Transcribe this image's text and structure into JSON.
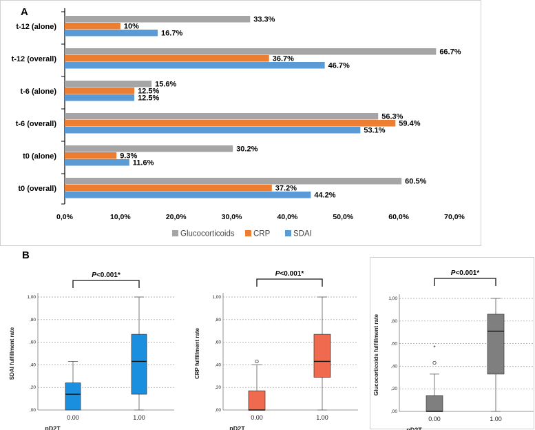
{
  "panels": {
    "a_letter": "A",
    "b_letter": "B"
  },
  "chart_data": [
    {
      "type": "bar",
      "orientation": "horizontal",
      "panel": "A",
      "categories": [
        "t-12 (alone)",
        "t-12 (overall)",
        "t-6 (alone)",
        "t-6 (overall)",
        "t0  (alone)",
        "t0 (overall)"
      ],
      "series": [
        {
          "name": "Glucocorticoids",
          "color": "#a5a5a5",
          "values": [
            33.3,
            66.7,
            15.6,
            56.3,
            30.2,
            60.5
          ],
          "labels": [
            "33.3%",
            "66.7%",
            "15.6%",
            "56.3%",
            "30.2%",
            "60.5%"
          ]
        },
        {
          "name": "CRP",
          "color": "#ed7d31",
          "values": [
            10,
            36.7,
            12.5,
            59.4,
            9.3,
            37.2
          ],
          "labels": [
            "10%",
            "36.7%",
            "12.5%",
            "59.4%",
            "9.3%",
            "37.2%"
          ]
        },
        {
          "name": "SDAI",
          "color": "#5b9bd5",
          "values": [
            16.7,
            46.7,
            12.5,
            53.1,
            11.6,
            44.2
          ],
          "labels": [
            "16.7%",
            "46.7%",
            "12.5%",
            "53.1%",
            "11.6%",
            "44.2%"
          ]
        }
      ],
      "xlim": [
        0,
        70
      ],
      "xticks": [
        "0,0%",
        "10,0%",
        "20,0%",
        "30,0%",
        "40,0%",
        "50,0%",
        "60,0%",
        "70,0%"
      ],
      "legend": [
        "Glucocorticoids",
        "CRP",
        "SDAI"
      ],
      "legend_position": "bottom-center"
    },
    {
      "type": "box",
      "panel": "B-1",
      "ylabel": "SDAI fulfillment rate",
      "xlabel": "pD2T",
      "categories": [
        "0.00",
        "1.00"
      ],
      "yticks": [
        ",00",
        ",20",
        ",40",
        ",60",
        ",80",
        "1,00"
      ],
      "ylim": [
        0,
        1
      ],
      "color": "#1a8fe0",
      "p_label": "P<0.001*",
      "boxes": [
        {
          "min": 0,
          "q1": 0,
          "median": 0.14,
          "q3": 0.24,
          "max": 0.43,
          "outliers": []
        },
        {
          "min": 0,
          "q1": 0.14,
          "median": 0.43,
          "q3": 0.67,
          "max": 1.0,
          "outliers": []
        }
      ]
    },
    {
      "type": "box",
      "panel": "B-2",
      "ylabel": "CRP fulfillment rate",
      "xlabel": "pD2T",
      "categories": [
        "0.00",
        "1.00"
      ],
      "yticks": [
        ",00",
        ",20",
        ",40",
        ",60",
        ",80",
        "1,00"
      ],
      "ylim": [
        0,
        1
      ],
      "color": "#ef6a4f",
      "p_label": "P<0.001*",
      "boxes": [
        {
          "min": 0,
          "q1": 0,
          "median": 0,
          "q3": 0.17,
          "max": 0.4,
          "outliers": [
            {
              "value": 0.43,
              "marker": "o"
            }
          ]
        },
        {
          "min": 0,
          "q1": 0.29,
          "median": 0.43,
          "q3": 0.67,
          "max": 1.0,
          "outliers": []
        }
      ]
    },
    {
      "type": "box",
      "panel": "B-3",
      "ylabel": "Glucocorticoids fulfillment rate",
      "xlabel": "pD2T",
      "categories": [
        "0.00",
        "1.00"
      ],
      "yticks": [
        ",00",
        ",20",
        ",40",
        ",60",
        ",80",
        "1,00"
      ],
      "ylim": [
        0,
        1
      ],
      "color": "#7f7f7f",
      "p_label": "P<0.001*",
      "boxes": [
        {
          "min": 0,
          "q1": 0,
          "median": 0,
          "q3": 0.14,
          "max": 0.33,
          "outliers": [
            {
              "value": 0.43,
              "marker": "o"
            },
            {
              "value": 0.57,
              "marker": "*"
            }
          ]
        },
        {
          "min": 0,
          "q1": 0.33,
          "median": 0.71,
          "q3": 0.86,
          "max": 1.0,
          "outliers": []
        }
      ]
    }
  ]
}
